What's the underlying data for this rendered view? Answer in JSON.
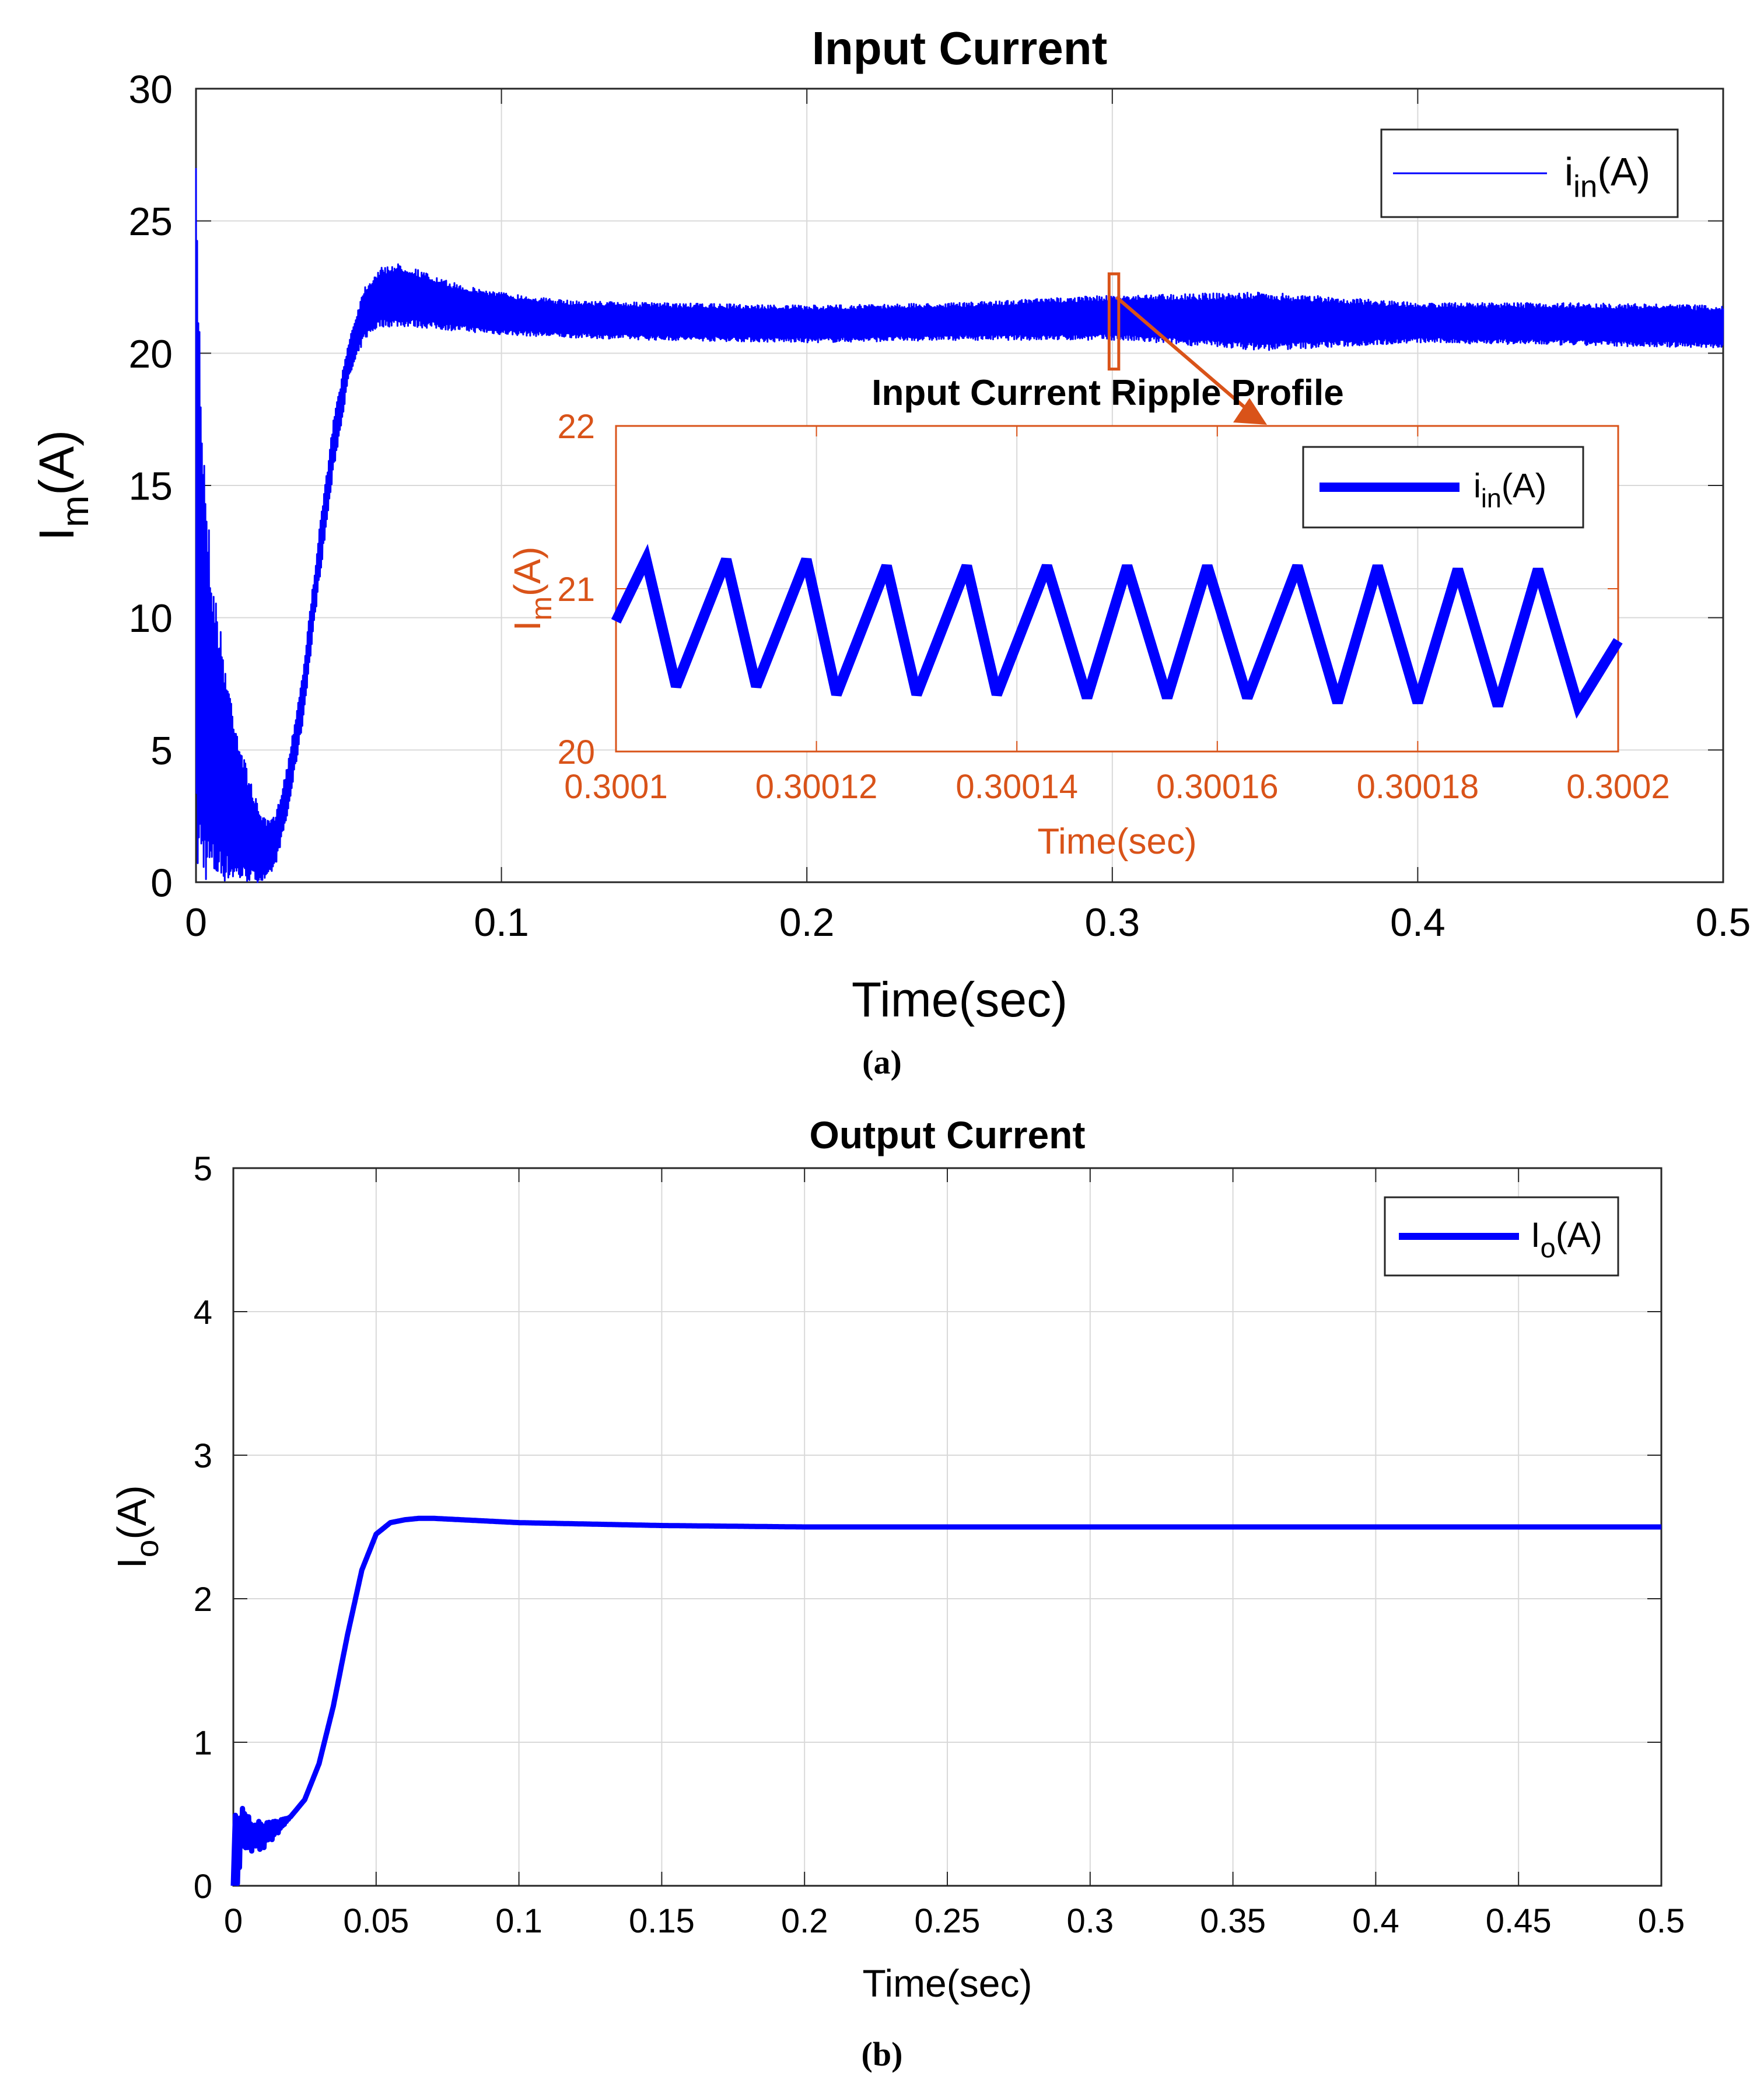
{
  "colors": {
    "trace": "#0000ff",
    "inset_accent": "#d95319",
    "axis": "#262626",
    "grid": "#d9d9d9",
    "text": "#000000"
  },
  "chart_data": [
    {
      "id": "a",
      "type": "line",
      "caption": "(a)",
      "title": "Input Current",
      "xlabel": "Time(sec)",
      "ylabel": {
        "main": "I",
        "sub": "m",
        "rest": "(A)"
      },
      "xlim": [
        0,
        0.5
      ],
      "ylim": [
        0,
        30
      ],
      "xticks": [
        0,
        0.1,
        0.2,
        0.3,
        0.4,
        0.5
      ],
      "xtick_labels": [
        "0",
        "0.1",
        "0.2",
        "0.3",
        "0.4",
        "0.5"
      ],
      "yticks": [
        0,
        5,
        10,
        15,
        20,
        25,
        30
      ],
      "ytick_labels": [
        "0",
        "5",
        "10",
        "15",
        "20",
        "25",
        "30"
      ],
      "grid": true,
      "legend": {
        "position": "top-right",
        "entries": [
          {
            "main": "i",
            "sub": "in",
            "rest": "(A)"
          }
        ]
      },
      "series": [
        {
          "name": "i_in(A)",
          "x": [
            0,
            0.002,
            0.005,
            0.01,
            0.015,
            0.02,
            0.023,
            0.026,
            0.03,
            0.035,
            0.04,
            0.045,
            0.05,
            0.055,
            0.06,
            0.065,
            0.07,
            0.08,
            0.09,
            0.1,
            0.12,
            0.15,
            0.2,
            0.25,
            0.3,
            0.35,
            0.4,
            0.45,
            0.5
          ],
          "y_upper": [
            27,
            18,
            12,
            8,
            5,
            3,
            2.3,
            2.5,
            4.5,
            8,
            13,
            17.5,
            20.5,
            22.5,
            23.2,
            23.4,
            23.3,
            22.8,
            22.5,
            22.3,
            22.0,
            21.9,
            21.8,
            21.9,
            22.2,
            22.3,
            21.9,
            21.9,
            21.8
          ],
          "y_lower": [
            0,
            0,
            0,
            0,
            0,
            0,
            0,
            0.6,
            2.5,
            6,
            11,
            15.5,
            19,
            20.5,
            21.0,
            21.0,
            21.0,
            20.9,
            20.8,
            20.7,
            20.6,
            20.5,
            20.4,
            20.5,
            20.5,
            20.1,
            20.4,
            20.3,
            20.2
          ]
        }
      ],
      "annotation": {
        "marker_x": [
          0.3001,
          0.3002
        ],
        "marker_y": [
          19.4,
          23.0
        ]
      }
    },
    {
      "id": "a-inset",
      "type": "line",
      "title": "Input Current Ripple Profile",
      "xlabel": "Time(sec)",
      "ylabel": {
        "main": "I",
        "sub": "m",
        "rest": "(A)"
      },
      "xlim": [
        0.3001,
        0.3002
      ],
      "ylim": [
        20,
        22
      ],
      "xticks": [
        0.3001,
        0.30012,
        0.30014,
        0.30016,
        0.30018,
        0.3002
      ],
      "xtick_labels": [
        "0.3001",
        "0.30012",
        "0.30014",
        "0.30016",
        "0.30018",
        "0.3002"
      ],
      "yticks": [
        20,
        21,
        22
      ],
      "ytick_labels": [
        "20",
        "21",
        "22"
      ],
      "grid": true,
      "legend": {
        "position": "top-right",
        "entries": [
          {
            "main": "i",
            "sub": "in",
            "rest": "(A)"
          }
        ]
      },
      "series": [
        {
          "name": "i_in(A)",
          "x": [
            0.3001,
            0.300103,
            0.300106,
            0.300111,
            0.300114,
            0.300119,
            0.300122,
            0.300127,
            0.30013,
            0.300135,
            0.300138,
            0.300143,
            0.300147,
            0.300151,
            0.300155,
            0.300159,
            0.300163,
            0.300168,
            0.300172,
            0.300176,
            0.30018,
            0.300184,
            0.300188,
            0.300192,
            0.300196,
            0.3002
          ],
          "y": [
            20.8,
            21.18,
            20.4,
            21.18,
            20.4,
            21.18,
            20.35,
            21.14,
            20.35,
            21.14,
            20.35,
            21.14,
            20.33,
            21.14,
            20.33,
            21.14,
            20.33,
            21.14,
            20.3,
            21.14,
            20.3,
            21.12,
            20.28,
            21.12,
            20.28,
            20.68
          ]
        }
      ]
    },
    {
      "id": "b",
      "type": "line",
      "caption": "(b)",
      "title": "Output Current",
      "xlabel": "Time(sec)",
      "ylabel": {
        "main": "I",
        "sub": "o",
        "rest": "(A)"
      },
      "xlim": [
        0,
        0.5
      ],
      "ylim": [
        0,
        5
      ],
      "xticks": [
        0,
        0.05,
        0.1,
        0.15,
        0.2,
        0.25,
        0.3,
        0.35,
        0.4,
        0.45,
        0.5
      ],
      "xtick_labels": [
        "0",
        "0.05",
        "0.1",
        "0.15",
        "0.2",
        "0.25",
        "0.3",
        "0.35",
        "0.4",
        "0.45",
        "0.5"
      ],
      "yticks": [
        0,
        1,
        2,
        3,
        4,
        5
      ],
      "ytick_labels": [
        "0",
        "1",
        "2",
        "3",
        "4",
        "5"
      ],
      "grid": true,
      "legend": {
        "position": "top-right",
        "entries": [
          {
            "main": "I",
            "sub": "o",
            "rest": "(A)"
          }
        ]
      },
      "series": [
        {
          "name": "I_o(A)",
          "x": [
            0,
            0.0008,
            0.0015,
            0.003,
            0.006,
            0.01,
            0.015,
            0.02,
            0.025,
            0.03,
            0.035,
            0.04,
            0.045,
            0.05,
            0.055,
            0.06,
            0.065,
            0.07,
            0.08,
            0.1,
            0.15,
            0.2,
            0.3,
            0.4,
            0.5
          ],
          "y": [
            0,
            0.55,
            0.1,
            0.45,
            0.35,
            0.35,
            0.4,
            0.48,
            0.6,
            0.85,
            1.25,
            1.75,
            2.2,
            2.45,
            2.53,
            2.55,
            2.56,
            2.56,
            2.55,
            2.53,
            2.51,
            2.5,
            2.5,
            2.5,
            2.5
          ]
        }
      ]
    }
  ]
}
